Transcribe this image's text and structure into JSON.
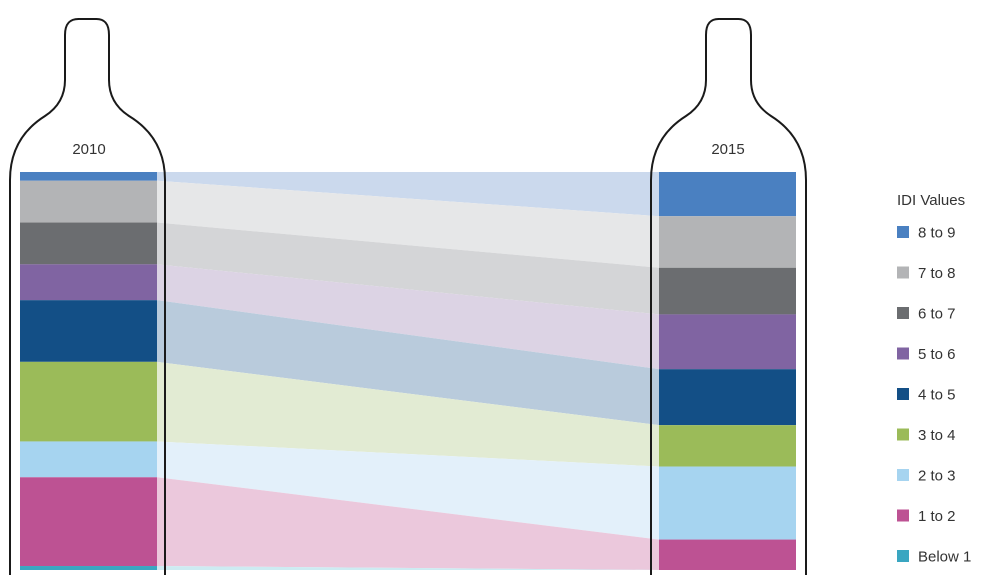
{
  "chart_data": {
    "type": "area",
    "categories": [
      "2010",
      "2015"
    ],
    "legend_title": "IDI Values",
    "legend_placement": "right",
    "series": [
      {
        "name": "8 to 9",
        "color": "#4a80c1",
        "ribbon_color": "#cbd9ed",
        "values": [
          2.2,
          10.9
        ]
      },
      {
        "name": "7 to 8",
        "color": "#b3b4b6",
        "ribbon_color": "#e6e7e8",
        "values": [
          10.5,
          12.7
        ]
      },
      {
        "name": "6 to 7",
        "color": "#6b6d70",
        "ribbon_color": "#d4d5d7",
        "values": [
          10.5,
          11.5
        ]
      },
      {
        "name": "5 to 6",
        "color": "#8064a2",
        "ribbon_color": "#dcd3e4",
        "values": [
          9.0,
          13.5
        ]
      },
      {
        "name": "4 to 5",
        "color": "#134f86",
        "ribbon_color": "#b9cbdc",
        "values": [
          15.5,
          13.8
        ]
      },
      {
        "name": "3 to 4",
        "color": "#9bbb59",
        "ribbon_color": "#e2ebd3",
        "values": [
          20.0,
          10.2
        ]
      },
      {
        "name": "2 to 3",
        "color": "#a6d4f0",
        "ribbon_color": "#e3f0fa",
        "values": [
          9.0,
          18.0
        ]
      },
      {
        "name": "1 to 2",
        "color": "#bd5293",
        "ribbon_color": "#ebc8dc",
        "values": [
          22.3,
          7.5
        ]
      },
      {
        "name": "Below 1",
        "color": "#3aa6c1",
        "ribbon_color": "#cdebf2",
        "values": [
          1.0,
          0.0
        ]
      }
    ]
  }
}
